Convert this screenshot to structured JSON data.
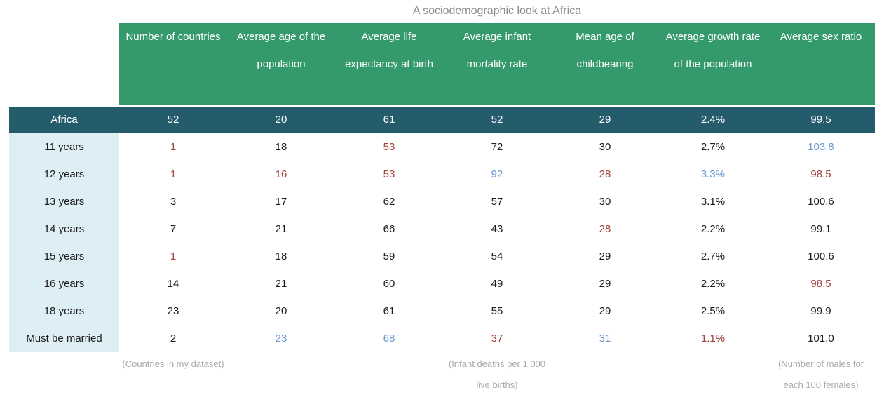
{
  "title": "A sociodemographic look at Africa",
  "colors": {
    "green": "#34996b",
    "teal": "#245c6b",
    "label_bg": "#ddeef5",
    "red": "#a4423b",
    "blue": "#6b9ad1",
    "title_gray": "#8c8c8c",
    "note_gray": "#a9a9a9",
    "ink": "#1c1c1c"
  },
  "chart_data": {
    "type": "table",
    "title": "A sociodemographic look at Africa",
    "columns": [
      "Number of countries",
      "Average age of the population",
      "Average life expectancy at birth",
      "Average infant mortality rate",
      "Mean age of childbearing",
      "Average growth rate of the population",
      "Average sex ratio"
    ],
    "column_notes": [
      "(Countries in my dataset)",
      "",
      "",
      "(Infant deaths per 1.000 live births)",
      "",
      "",
      "(Number of males for each 100 females)"
    ],
    "summary_row": {
      "label": "Africa",
      "values": [
        "52",
        "20",
        "61",
        "52",
        "29",
        "2.4%",
        "99.5"
      ]
    },
    "rows": [
      {
        "label": "11 years",
        "values": [
          "1",
          "18",
          "53",
          "72",
          "30",
          "2.7%",
          "103.8"
        ],
        "value_colors": [
          "red",
          "default",
          "red",
          "default",
          "default",
          "default",
          "blue"
        ]
      },
      {
        "label": "12 years",
        "values": [
          "1",
          "16",
          "53",
          "92",
          "28",
          "3.3%",
          "98.5"
        ],
        "value_colors": [
          "red",
          "red",
          "red",
          "blue",
          "red",
          "blue",
          "red"
        ]
      },
      {
        "label": "13 years",
        "values": [
          "3",
          "17",
          "62",
          "57",
          "30",
          "3.1%",
          "100.6"
        ],
        "value_colors": [
          "default",
          "default",
          "default",
          "default",
          "default",
          "default",
          "default"
        ]
      },
      {
        "label": "14 years",
        "values": [
          "7",
          "21",
          "66",
          "43",
          "28",
          "2.2%",
          "99.1"
        ],
        "value_colors": [
          "default",
          "default",
          "default",
          "default",
          "red",
          "default",
          "default"
        ]
      },
      {
        "label": "15 years",
        "values": [
          "1",
          "18",
          "59",
          "54",
          "29",
          "2.7%",
          "100.6"
        ],
        "value_colors": [
          "red",
          "default",
          "default",
          "default",
          "default",
          "default",
          "default"
        ]
      },
      {
        "label": "16 years",
        "values": [
          "14",
          "21",
          "60",
          "49",
          "29",
          "2.2%",
          "98.5"
        ],
        "value_colors": [
          "default",
          "default",
          "default",
          "default",
          "default",
          "default",
          "red"
        ]
      },
      {
        "label": "18 years",
        "values": [
          "23",
          "20",
          "61",
          "55",
          "29",
          "2.5%",
          "99.9"
        ],
        "value_colors": [
          "default",
          "default",
          "default",
          "default",
          "default",
          "default",
          "default"
        ]
      },
      {
        "label": "Must be married",
        "values": [
          "2",
          "23",
          "68",
          "37",
          "31",
          "1.1%",
          "101.0"
        ],
        "value_colors": [
          "default",
          "blue",
          "blue",
          "red",
          "blue",
          "red",
          "default"
        ]
      }
    ]
  }
}
